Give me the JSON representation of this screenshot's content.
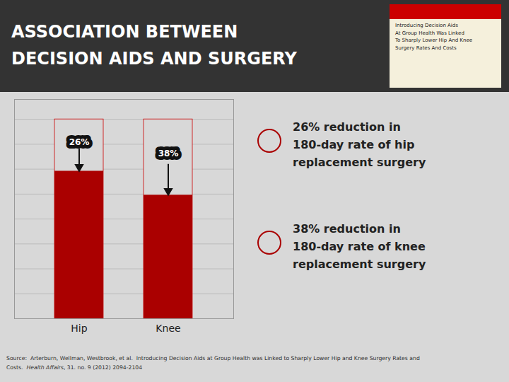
{
  "chart_data": {
    "type": "bar",
    "title": "ASSOCIATION BETWEEN\nDECISION AIDS AND SURGERY",
    "categories": [
      "Hip",
      "Knee"
    ],
    "values": [
      0.74,
      0.62
    ],
    "reference_values": [
      1,
      1
    ],
    "color": "#aa0000",
    "ylim": [
      0,
      1.1
    ],
    "yticks": [
      0,
      0.125,
      0.25,
      0.375,
      0.5,
      0.625,
      0.75,
      0.875,
      1
    ],
    "grid": true,
    "tick_labels": "x",
    "annotations": [
      "26%",
      "38%"
    ],
    "notes": [
      [
        "26% reduction in",
        "180-day rate of hip",
        "replacement surgery"
      ],
      [
        "38% reduction in",
        "180-day rate of knee",
        "replacement surgery"
      ]
    ],
    "inset_text": [
      "Introducing Decision Aids",
      "At Group Health Was Linked",
      "To Sharply Lower Hip And Knee",
      "Surgery Rates And Costs"
    ],
    "source": [
      "Source:  Arterburn, Wellman, Westbrook, et al.  Introducing Decision Aids at Group Health was Linked to Sharply Lower Hip and Knee Surgery Rates and",
      "Costs.  ",
      "Health Affairs",
      ", 31. no. 9 (2012) 2094-2104"
    ]
  }
}
